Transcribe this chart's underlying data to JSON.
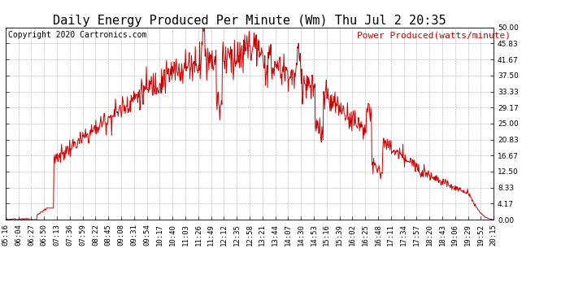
{
  "title": "Daily Energy Produced Per Minute (Wm) Thu Jul 2 20:35",
  "copyright": "Copyright 2020 Cartronics.com",
  "legend_label": "Power Produced(watts/minute)",
  "line_color": "#cc0000",
  "background_color": "#ffffff",
  "plot_bg_color": "#ffffff",
  "grid_color": "#999999",
  "ylim": [
    0,
    50
  ],
  "yticks": [
    0.0,
    4.17,
    8.33,
    12.5,
    16.67,
    20.83,
    25.0,
    29.17,
    33.33,
    37.5,
    41.67,
    45.83,
    50.0
  ],
  "xtick_labels": [
    "05:16",
    "06:04",
    "06:27",
    "06:50",
    "07:13",
    "07:36",
    "07:59",
    "08:22",
    "08:45",
    "09:08",
    "09:31",
    "09:54",
    "10:17",
    "10:40",
    "11:03",
    "11:26",
    "11:49",
    "12:12",
    "12:35",
    "12:58",
    "13:21",
    "13:44",
    "14:07",
    "14:30",
    "14:53",
    "15:16",
    "15:39",
    "16:02",
    "16:25",
    "16:48",
    "17:11",
    "17:34",
    "17:57",
    "18:20",
    "18:43",
    "19:06",
    "19:29",
    "19:52",
    "20:15"
  ],
  "title_fontsize": 11,
  "copyright_fontsize": 7,
  "legend_fontsize": 8,
  "tick_fontsize": 6.5,
  "line_width": 0.7
}
